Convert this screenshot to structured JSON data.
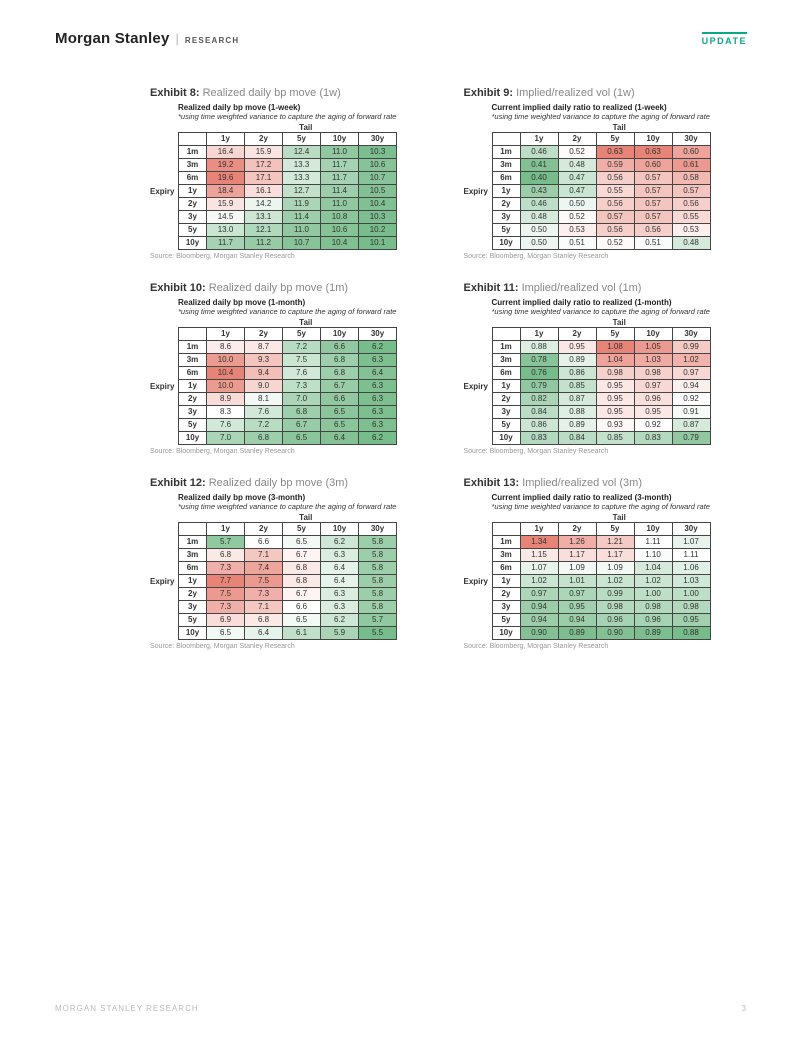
{
  "header": {
    "logo": "Morgan Stanley",
    "research": "RESEARCH",
    "badge": "UPDATE"
  },
  "footer": {
    "left": "MORGAN STANLEY RESEARCH",
    "page": "3"
  },
  "common": {
    "tail_label": "Tail",
    "expiry_label": "Expiry",
    "source": "Source: Bloomberg, Morgan Stanley Research",
    "col_headers": [
      "1y",
      "2y",
      "5y",
      "10y",
      "30y"
    ],
    "row_headers": [
      "1m",
      "3m",
      "6m",
      "1y",
      "2y",
      "3y",
      "5y",
      "10y"
    ]
  },
  "heatmap": {
    "low_color": "#4aa564",
    "mid_color": "#ffffff",
    "high_color": "#e05a4a",
    "blend_mid": 0.5
  },
  "exhibits": [
    {
      "num": "Exhibit 8:",
      "title": "Realized daily bp move (1w)",
      "subtitle": "Realized daily bp move (1-week)",
      "note": "*using time weighted variance to capture the aging of forward rate",
      "min": 10.1,
      "max": 19.6,
      "rows": [
        [
          16.4,
          15.9,
          12.4,
          11.0,
          10.3
        ],
        [
          19.2,
          17.2,
          13.3,
          11.7,
          10.6
        ],
        [
          19.6,
          17.1,
          13.3,
          11.7,
          10.7
        ],
        [
          18.4,
          16.1,
          12.7,
          11.4,
          10.5
        ],
        [
          15.9,
          14.2,
          11.9,
          11.0,
          10.4
        ],
        [
          14.5,
          13.1,
          11.4,
          10.8,
          10.3
        ],
        [
          13.0,
          12.1,
          11.0,
          10.6,
          10.2
        ],
        [
          11.7,
          11.2,
          10.7,
          10.4,
          10.1
        ]
      ]
    },
    {
      "num": "Exhibit 9:",
      "title": "Implied/realized vol (1w)",
      "subtitle": "Current implied daily ratio to realized (1-week)",
      "note": "*using time weighted variance to capture the aging of forward rate",
      "min": 0.4,
      "max": 0.63,
      "rows": [
        [
          0.46,
          0.52,
          0.63,
          0.63,
          0.6
        ],
        [
          0.41,
          0.48,
          0.59,
          0.6,
          0.61
        ],
        [
          0.4,
          0.47,
          0.56,
          0.57,
          0.58
        ],
        [
          0.43,
          0.47,
          0.55,
          0.57,
          0.57
        ],
        [
          0.46,
          0.5,
          0.56,
          0.57,
          0.56
        ],
        [
          0.48,
          0.52,
          0.57,
          0.57,
          0.55
        ],
        [
          0.5,
          0.53,
          0.56,
          0.56,
          0.53
        ],
        [
          0.5,
          0.51,
          0.52,
          0.51,
          0.48
        ]
      ]
    },
    {
      "num": "Exhibit 10:",
      "title": "Realized daily bp move (1m)",
      "subtitle": "Realized daily bp move (1-month)",
      "note": "*using time weighted variance to capture the aging of forward rate",
      "min": 6.2,
      "max": 10.4,
      "rows": [
        [
          8.6,
          8.7,
          7.2,
          6.6,
          6.2
        ],
        [
          10.0,
          9.3,
          7.5,
          6.8,
          6.3
        ],
        [
          10.4,
          9.4,
          7.6,
          6.8,
          6.4
        ],
        [
          10.0,
          9.0,
          7.3,
          6.7,
          6.3
        ],
        [
          8.9,
          8.1,
          7.0,
          6.6,
          6.3
        ],
        [
          8.3,
          7.6,
          6.8,
          6.5,
          6.3
        ],
        [
          7.6,
          7.2,
          6.7,
          6.5,
          6.3
        ],
        [
          7.0,
          6.8,
          6.5,
          6.4,
          6.2
        ]
      ]
    },
    {
      "num": "Exhibit 11:",
      "title": "Implied/realized vol (1m)",
      "subtitle": "Current implied daily ratio to realized (1-month)",
      "note": "*using time weighted variance to capture the aging of forward rate",
      "min": 0.76,
      "max": 1.08,
      "rows": [
        [
          0.88,
          0.95,
          1.08,
          1.05,
          0.99
        ],
        [
          0.78,
          0.89,
          1.04,
          1.03,
          1.02
        ],
        [
          0.76,
          0.86,
          0.98,
          0.98,
          0.97
        ],
        [
          0.79,
          0.85,
          0.95,
          0.97,
          0.94
        ],
        [
          0.82,
          0.87,
          0.95,
          0.96,
          0.92
        ],
        [
          0.84,
          0.88,
          0.95,
          0.95,
          0.91
        ],
        [
          0.86,
          0.89,
          0.93,
          0.92,
          0.87
        ],
        [
          0.83,
          0.84,
          0.85,
          0.83,
          0.79
        ]
      ]
    },
    {
      "num": "Exhibit 12:",
      "title": "Realized daily bp move (3m)",
      "subtitle": "Realized daily bp move (3-month)",
      "note": "*using time weighted variance to capture the aging of forward rate",
      "min": 5.5,
      "max": 7.7,
      "rows": [
        [
          5.7,
          6.6,
          6.5,
          6.2,
          5.8
        ],
        [
          6.8,
          7.1,
          6.7,
          6.3,
          5.8
        ],
        [
          7.3,
          7.4,
          6.8,
          6.4,
          5.8
        ],
        [
          7.7,
          7.5,
          6.8,
          6.4,
          5.8
        ],
        [
          7.5,
          7.3,
          6.7,
          6.3,
          5.8
        ],
        [
          7.3,
          7.1,
          6.6,
          6.3,
          5.8
        ],
        [
          6.9,
          6.8,
          6.5,
          6.2,
          5.7
        ],
        [
          6.5,
          6.4,
          6.1,
          5.9,
          5.5
        ]
      ]
    },
    {
      "num": "Exhibit 13:",
      "title": "Implied/realized vol (3m)",
      "subtitle": "Current implied daily ratio to realized (3-month)",
      "note": "*using time weighted variance to capture the aging of forward rate",
      "min": 0.88,
      "max": 1.34,
      "rows": [
        [
          1.34,
          1.26,
          1.21,
          1.11,
          1.07
        ],
        [
          1.15,
          1.17,
          1.17,
          1.1,
          1.11
        ],
        [
          1.07,
          1.09,
          1.09,
          1.04,
          1.06
        ],
        [
          1.02,
          1.01,
          1.02,
          1.02,
          1.03
        ],
        [
          0.97,
          0.97,
          0.99,
          1.0,
          1.0
        ],
        [
          0.94,
          0.95,
          0.98,
          0.98,
          0.98
        ],
        [
          0.94,
          0.94,
          0.96,
          0.96,
          0.95
        ],
        [
          0.9,
          0.89,
          0.9,
          0.89,
          0.88
        ]
      ]
    }
  ]
}
